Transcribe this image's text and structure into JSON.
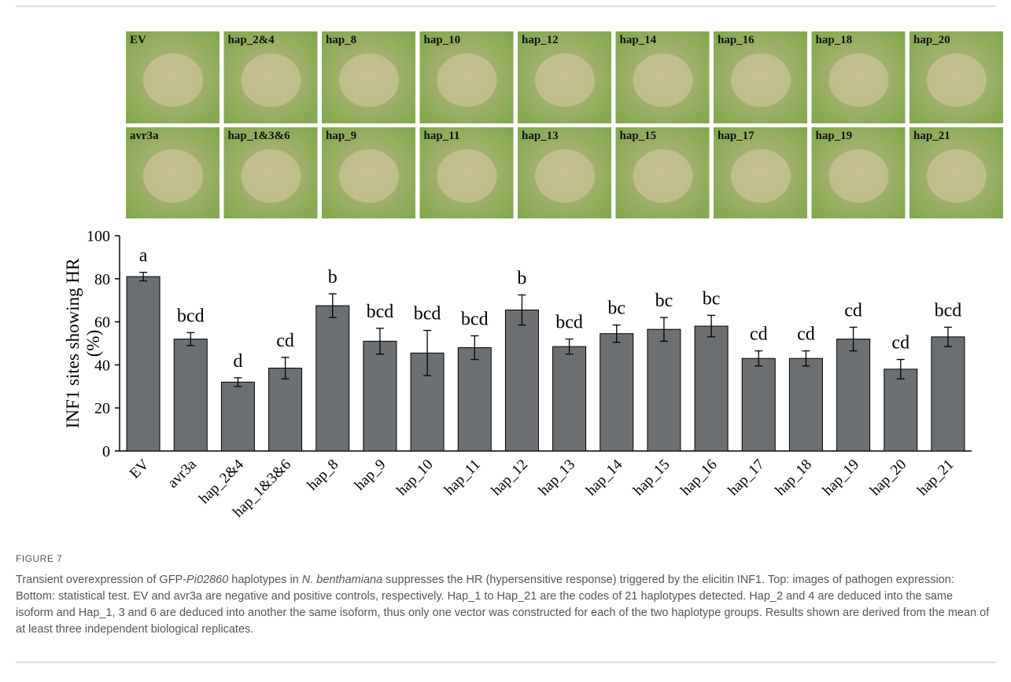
{
  "panels": {
    "top": [
      "EV",
      "hap_2&4",
      "hap_8",
      "hap_10",
      "hap_12",
      "hap_14",
      "hap_16",
      "hap_18",
      "hap_20"
    ],
    "bottom": [
      "avr3a",
      "hap_1&3&6",
      "hap_9",
      "hap_11",
      "hap_13",
      "hap_15",
      "hap_17",
      "hap_19",
      "hap_21"
    ]
  },
  "chart_data": {
    "type": "bar",
    "y_label": [
      "INF1 sites showing HR",
      "(%)"
    ],
    "categories": [
      "EV",
      "avr3a",
      "hap_2&4",
      "hap_1&3&6",
      "hap_8",
      "hap_9",
      "hap_10",
      "hap_11",
      "hap_12",
      "hap_13",
      "hap_14",
      "hap_15",
      "hap_16",
      "hap_17",
      "hap_18",
      "hap_19",
      "hap_20",
      "hap_21"
    ],
    "values": [
      81,
      52,
      32,
      38.5,
      67.5,
      51,
      45.5,
      48,
      65.5,
      48.5,
      54.5,
      56.5,
      58,
      43,
      43,
      52,
      38,
      53
    ],
    "errors": [
      2,
      3,
      2,
      5,
      5.5,
      6,
      10.5,
      5.5,
      7,
      3.5,
      4,
      5.5,
      5,
      3.5,
      3.5,
      5.5,
      4.5,
      4.5
    ],
    "letters": [
      "a",
      "bcd",
      "d",
      "cd",
      "b",
      "bcd",
      "bcd",
      "bcd",
      "b",
      "bcd",
      "bc",
      "bc",
      "bc",
      "cd",
      "cd",
      "cd",
      "cd",
      "bcd"
    ],
    "color": "#6d7073",
    "ylim": [
      0,
      100
    ],
    "yticks": [
      0,
      20,
      40,
      60,
      80,
      100
    ]
  },
  "caption": {
    "label": "FIGURE 7",
    "text": [
      "Transient overexpression of GFP-",
      "Pi02860",
      " haplotypes in ",
      "N. benthamiana",
      " suppresses the HR (hypersensitive response) triggered by the elicitin INF1. Top: images of pathogen expression: Bottom: statistical test. EV and avr3a are negative and positive controls, respectively. Hap_1 to Hap_21 are the codes of 21 haplotypes detected. Hap_2 and 4 are deduced into the same isoform and Hap_1, 3 and 6 are deduced into another the same isoform, thus only one vector was constructed for each of the two haplotype groups. Results shown are derived from the mean of at least three independent biological replicates."
    ]
  }
}
